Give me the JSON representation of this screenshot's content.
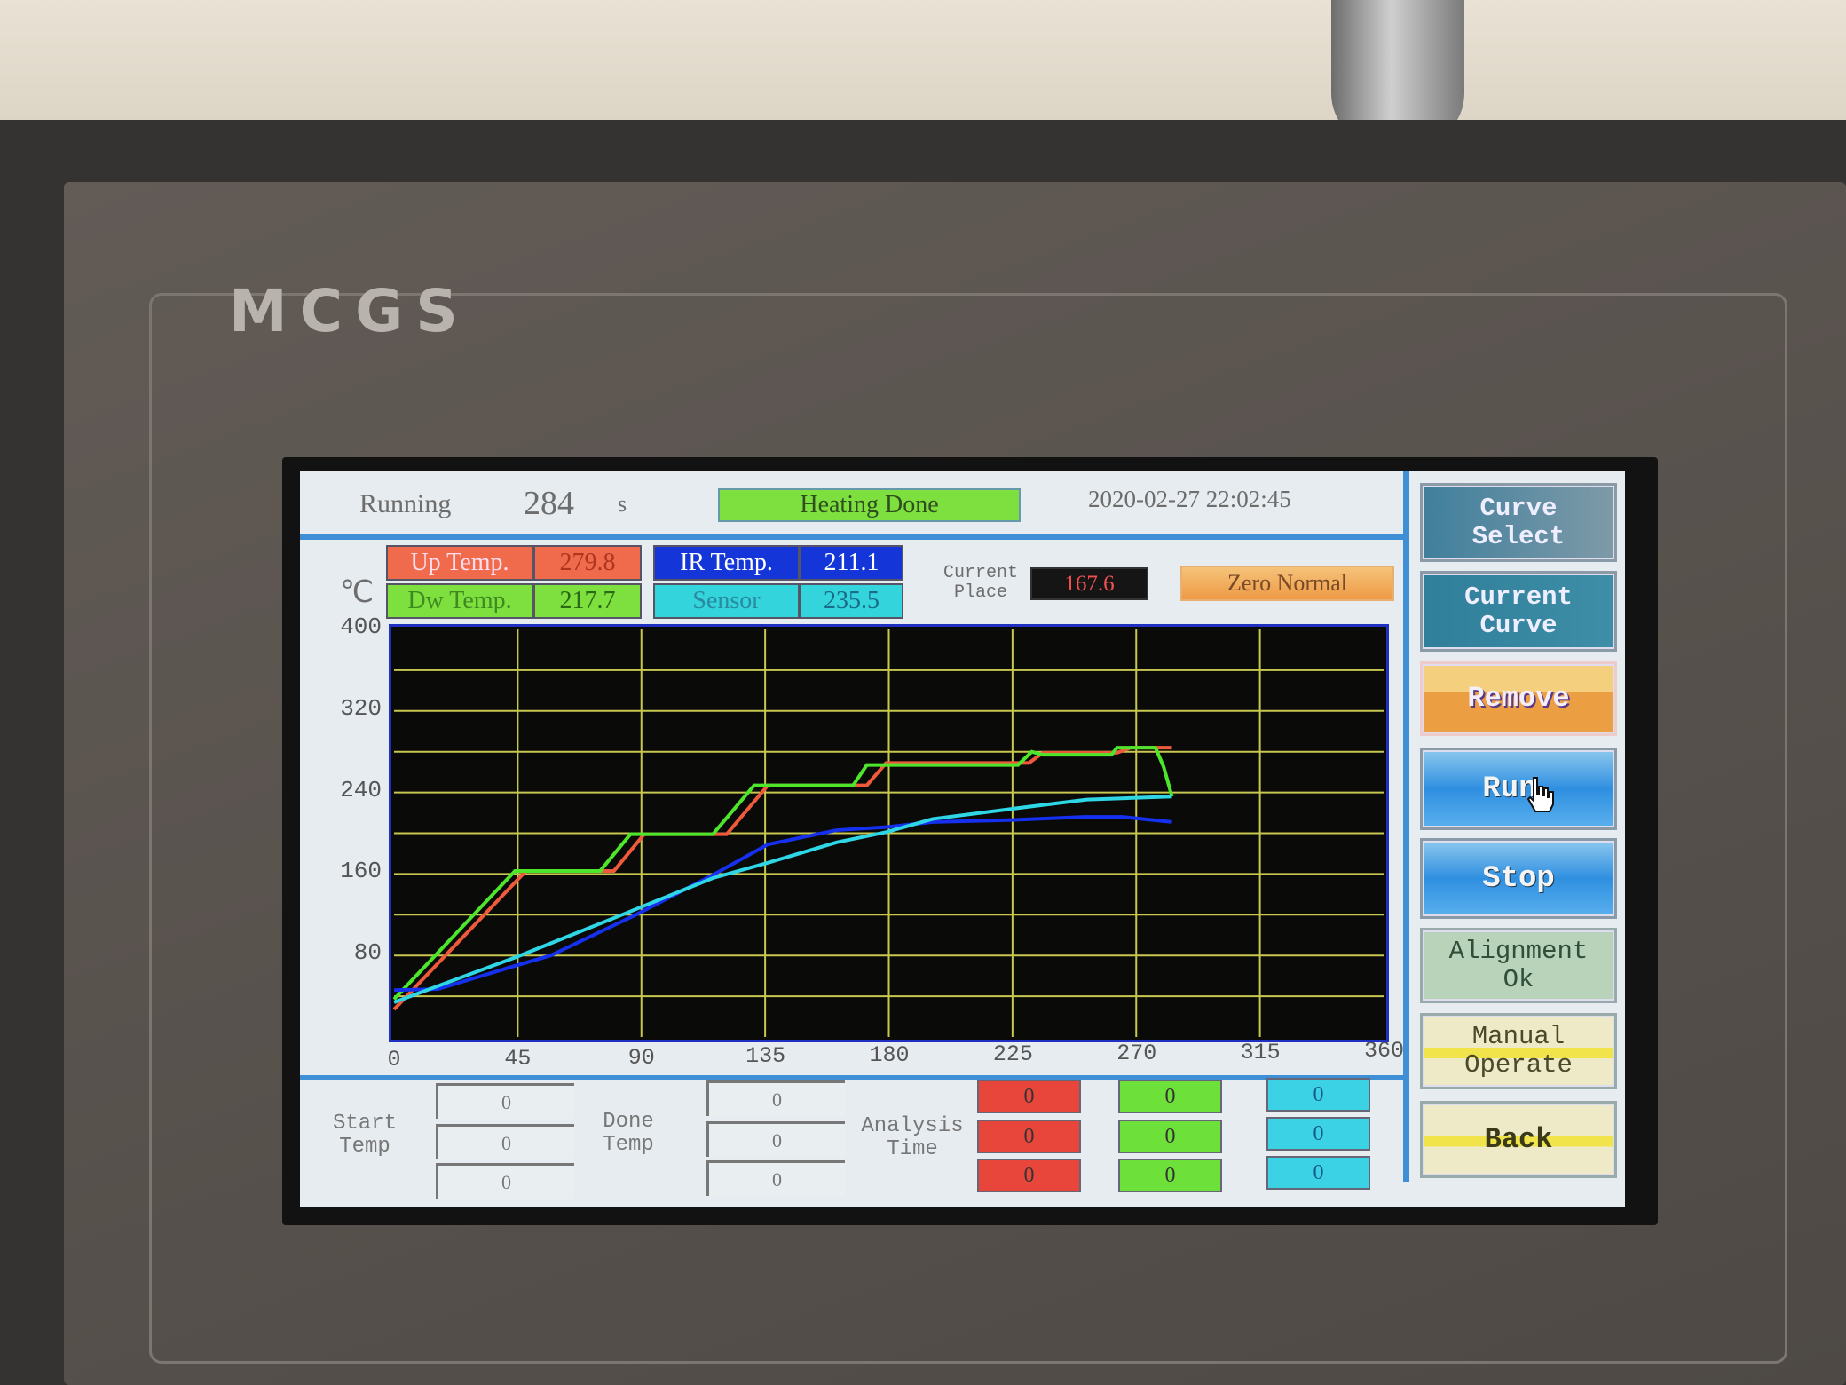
{
  "device": {
    "logo": "MCGS"
  },
  "header": {
    "running_label": "Running",
    "running_value": "284",
    "running_unit": "s",
    "status": "Heating Done",
    "datetime": "2020-02-27 22:02:45"
  },
  "readouts": {
    "up_temp": {
      "label": "Up Temp.",
      "value": "279.8"
    },
    "dw_temp": {
      "label": "Dw Temp.",
      "value": "217.7"
    },
    "ir_temp": {
      "label": "IR Temp.",
      "value": "211.1"
    },
    "sensor": {
      "label": "Sensor",
      "value": "235.5"
    },
    "current_place_label": "Current Place",
    "current_place_value": "167.6",
    "zero_status": "Zero Normal"
  },
  "buttons": {
    "curve_select": "Curve Select",
    "current_curve": "Current Curve",
    "remove": "Remove",
    "run": "Run",
    "stop": "Stop",
    "alignment": "Alignment Ok",
    "manual": "Manual Operate",
    "back": "Back"
  },
  "bottom": {
    "start_label": "Start Temp",
    "start_values": [
      "0",
      "0",
      "0"
    ],
    "done_label": "Done Temp",
    "done_values": [
      "0",
      "0",
      "0"
    ],
    "analysis_label": "Analysis Time",
    "red_values": [
      "0",
      "0",
      "0"
    ],
    "green_values": [
      "0",
      "0",
      "0"
    ],
    "cyan_values": [
      "0",
      "0",
      "0"
    ]
  },
  "colors": {
    "up": "#f05a3c",
    "dw": "#4ee62a",
    "ir": "#1530ee",
    "sensor": "#2ed6e6",
    "grid": "#c8c850",
    "plot_bg": "#0a0a08"
  },
  "chart_data": {
    "type": "line",
    "ylabel": "℃",
    "xlim": [
      0,
      360
    ],
    "ylim": [
      0,
      400
    ],
    "xticks": [
      "0",
      "45",
      "90",
      "135",
      "180",
      "225",
      "270",
      "315",
      "360"
    ],
    "yticks": [
      "400",
      "320",
      "240",
      "160",
      "80"
    ],
    "grid": true,
    "series": [
      {
        "key": "up",
        "color": "#f05a3c",
        "points": [
          [
            0,
            27
          ],
          [
            48,
            163
          ],
          [
            80,
            163
          ],
          [
            91,
            199
          ],
          [
            121,
            199
          ],
          [
            136,
            247
          ],
          [
            172,
            247
          ],
          [
            179,
            269
          ],
          [
            231,
            269
          ],
          [
            236,
            279
          ],
          [
            263,
            279
          ],
          [
            268,
            284
          ],
          [
            283,
            284
          ]
        ]
      },
      {
        "key": "dw",
        "color": "#4ee62a",
        "points": [
          [
            0,
            37
          ],
          [
            44,
            163
          ],
          [
            75,
            163
          ],
          [
            86,
            199
          ],
          [
            116,
            199
          ],
          [
            131,
            247
          ],
          [
            167,
            247
          ],
          [
            172,
            267
          ],
          [
            227,
            267
          ],
          [
            232,
            280
          ],
          [
            236,
            277
          ],
          [
            261,
            277
          ],
          [
            263,
            284
          ],
          [
            277,
            284
          ],
          [
            280,
            265
          ],
          [
            283,
            236
          ]
        ]
      },
      {
        "key": "ir",
        "color": "#1530ee",
        "points": [
          [
            0,
            46
          ],
          [
            16,
            47
          ],
          [
            43,
            69
          ],
          [
            57,
            80
          ],
          [
            88,
            120
          ],
          [
            116,
            159
          ],
          [
            136,
            189
          ],
          [
            161,
            203
          ],
          [
            179,
            206
          ],
          [
            196,
            211
          ],
          [
            225,
            213
          ],
          [
            251,
            216
          ],
          [
            265,
            216
          ],
          [
            283,
            211
          ]
        ]
      },
      {
        "key": "sensor",
        "color": "#2ed6e6",
        "points": [
          [
            0,
            34
          ],
          [
            45,
            79
          ],
          [
            83,
            120
          ],
          [
            116,
            156
          ],
          [
            136,
            171
          ],
          [
            161,
            191
          ],
          [
            179,
            201
          ],
          [
            196,
            214
          ],
          [
            225,
            224
          ],
          [
            252,
            233
          ],
          [
            283,
            236
          ]
        ]
      }
    ]
  }
}
